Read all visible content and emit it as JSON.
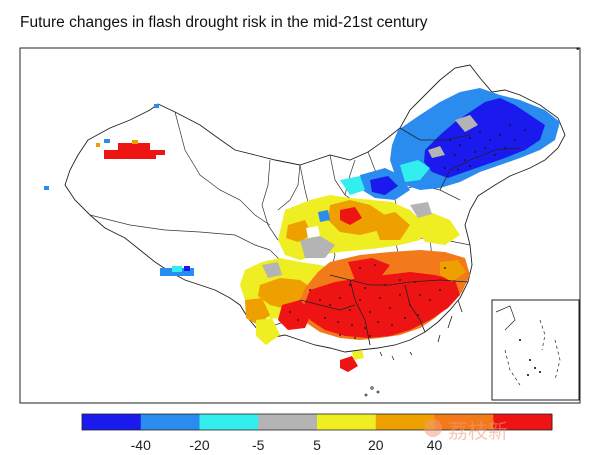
{
  "title": "Future changes in flash drought risk in the mid-21st century",
  "legend": {
    "colors": [
      "#1a1aee",
      "#2a8cee",
      "#33eeee",
      "#b4b4b4",
      "#eeee22",
      "#eea000",
      "#f27a1a",
      "#ee1414"
    ],
    "tick_labels": [
      "-40",
      "-20",
      "-5",
      "5",
      "20",
      "40"
    ]
  },
  "watermark": {
    "text": "荔枝新"
  }
}
